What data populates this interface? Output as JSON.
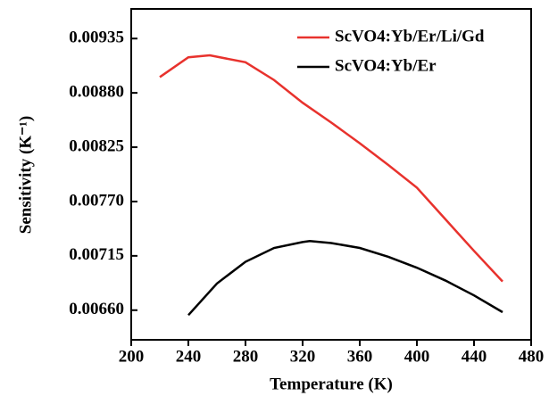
{
  "chart_data": {
    "type": "line",
    "xlabel": "Temperature (K)",
    "ylabel": "Sensitivity (K⁻¹)",
    "xlim": [
      200,
      480
    ],
    "xticks": [
      200,
      240,
      280,
      320,
      360,
      400,
      440,
      480
    ],
    "ylim": [
      0.0063,
      0.00965
    ],
    "yticks": [
      {
        "value": 0.0066,
        "label": "0.00660"
      },
      0.00715,
      {
        "value": 0.0077,
        "label": "0.00770"
      },
      0.00825,
      {
        "value": 0.0088,
        "label": "0.00880"
      },
      0.00935
    ],
    "legend": "upper right",
    "series": [
      {
        "name": "ScVO4:Yb/Er/Li/Gd",
        "color": "#e8322d",
        "x": [
          220,
          240,
          255,
          280,
          300,
          320,
          340,
          360,
          380,
          400,
          420,
          440,
          460
        ],
        "values": [
          0.00896,
          0.00916,
          0.00918,
          0.00911,
          0.00893,
          0.0087,
          0.0085,
          0.00829,
          0.00807,
          0.00784,
          0.00752,
          0.0072,
          0.00689
        ]
      },
      {
        "name": "ScVO4:Yb/Er",
        "color": "#000000",
        "x": [
          240,
          260,
          280,
          300,
          320,
          325,
          340,
          360,
          380,
          400,
          420,
          440,
          460
        ],
        "values": [
          0.00655,
          0.00687,
          0.00709,
          0.00723,
          0.00729,
          0.0073,
          0.00728,
          0.00723,
          0.00714,
          0.00703,
          0.0069,
          0.00675,
          0.00658
        ]
      }
    ]
  }
}
